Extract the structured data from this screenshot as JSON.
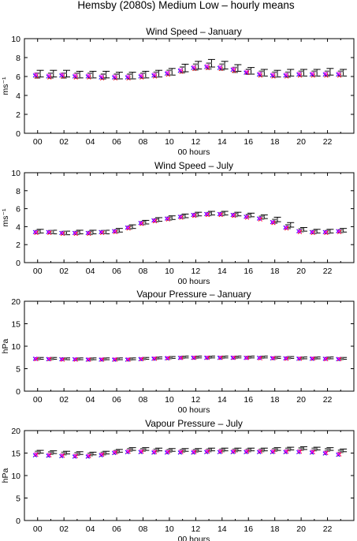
{
  "figure": {
    "title": "Hemsby (2080s) Medium Low – hourly means"
  },
  "series_colors": {
    "black_errorbar": "#000000",
    "grey_errorbar": "#777777",
    "red_marker": "#ff0000",
    "blue_marker": "#0000ff",
    "magenta_marker": "#ff00ff"
  },
  "chart_data": [
    {
      "type": "scatter",
      "title": "Wind Speed – January",
      "xlabel": "00 hours",
      "ylabel": "ms⁻¹",
      "xlim": [
        -1,
        24
      ],
      "ylim": [
        0,
        10
      ],
      "xticks": [
        "00",
        "02",
        "04",
        "06",
        "08",
        "10",
        "12",
        "14",
        "16",
        "18",
        "20",
        "22"
      ],
      "yticks": [
        "0",
        "2",
        "4",
        "6",
        "8",
        "10"
      ],
      "x": [
        0,
        1,
        2,
        3,
        4,
        5,
        6,
        7,
        8,
        9,
        10,
        11,
        12,
        13,
        14,
        15,
        16,
        17,
        18,
        19,
        20,
        21,
        22,
        23
      ],
      "series": [
        {
          "kind": "errorbar",
          "color": "#000000",
          "offset": 0.2,
          "values": [
            6.3,
            6.3,
            6.3,
            6.2,
            6.2,
            6.2,
            6.1,
            6.1,
            6.2,
            6.3,
            6.5,
            6.9,
            7.2,
            7.4,
            7.2,
            6.9,
            6.6,
            6.4,
            6.3,
            6.4,
            6.4,
            6.4,
            6.5,
            6.4
          ],
          "err": [
            0.35,
            0.35,
            0.35,
            0.35,
            0.35,
            0.35,
            0.35,
            0.35,
            0.35,
            0.35,
            0.35,
            0.4,
            0.4,
            0.4,
            0.4,
            0.35,
            0.35,
            0.35,
            0.35,
            0.35,
            0.35,
            0.35,
            0.35,
            0.35
          ]
        },
        {
          "kind": "errorbar",
          "color": "#777777",
          "offset": 0.0,
          "values": [
            6.1,
            6.1,
            6.1,
            6.1,
            6.1,
            6.0,
            6.0,
            6.0,
            6.1,
            6.2,
            6.4,
            6.7,
            7.0,
            7.1,
            7.0,
            6.7,
            6.5,
            6.3,
            6.2,
            6.2,
            6.3,
            6.3,
            6.3,
            6.3
          ],
          "err": [
            0.25,
            0.25,
            0.25,
            0.25,
            0.25,
            0.25,
            0.25,
            0.25,
            0.25,
            0.25,
            0.25,
            0.3,
            0.3,
            0.3,
            0.3,
            0.25,
            0.25,
            0.25,
            0.25,
            0.25,
            0.25,
            0.25,
            0.25,
            0.25
          ]
        },
        {
          "kind": "marker",
          "color": "#ff0000",
          "offset": -0.1,
          "values": [
            6.0,
            5.9,
            6.0,
            5.9,
            5.9,
            5.8,
            5.8,
            5.8,
            5.9,
            6.0,
            6.2,
            6.5,
            6.8,
            6.9,
            6.8,
            6.6,
            6.4,
            6.1,
            6.0,
            6.0,
            6.1,
            6.1,
            6.1,
            6.1
          ]
        },
        {
          "kind": "marker",
          "color": "#0000ff",
          "offset": -0.2,
          "values": [
            6.1,
            6.0,
            6.1,
            6.0,
            6.0,
            5.9,
            5.9,
            5.9,
            6.0,
            6.1,
            6.3,
            6.6,
            6.9,
            7.0,
            6.9,
            6.7,
            6.4,
            6.2,
            6.1,
            6.1,
            6.2,
            6.2,
            6.2,
            6.2
          ]
        },
        {
          "kind": "marker",
          "color": "#ff00ff",
          "offset": -0.15,
          "values": [
            6.2,
            6.1,
            6.2,
            6.1,
            6.1,
            6.0,
            6.0,
            6.0,
            6.1,
            6.2,
            6.4,
            6.7,
            7.0,
            7.1,
            7.0,
            6.8,
            6.5,
            6.3,
            6.2,
            6.2,
            6.3,
            6.3,
            6.3,
            6.3
          ]
        }
      ]
    },
    {
      "type": "scatter",
      "title": "Wind Speed – July",
      "xlabel": "00 hours",
      "ylabel": "ms⁻¹",
      "xlim": [
        -1,
        24
      ],
      "ylim": [
        0,
        10
      ],
      "xticks": [
        "00",
        "02",
        "04",
        "06",
        "08",
        "10",
        "12",
        "14",
        "16",
        "18",
        "20",
        "22"
      ],
      "yticks": [
        "0",
        "2",
        "4",
        "6",
        "8",
        "10"
      ],
      "x": [
        0,
        1,
        2,
        3,
        4,
        5,
        6,
        7,
        8,
        9,
        10,
        11,
        12,
        13,
        14,
        15,
        16,
        17,
        18,
        19,
        20,
        21,
        22,
        23
      ],
      "series": [
        {
          "kind": "errorbar",
          "color": "#000000",
          "offset": 0.2,
          "values": [
            3.5,
            3.4,
            3.3,
            3.4,
            3.4,
            3.4,
            3.6,
            4.0,
            4.5,
            4.8,
            5.0,
            5.2,
            5.4,
            5.5,
            5.5,
            5.4,
            5.3,
            5.1,
            4.8,
            4.2,
            3.7,
            3.5,
            3.5,
            3.6
          ],
          "err": [
            0.2,
            0.2,
            0.2,
            0.2,
            0.2,
            0.2,
            0.2,
            0.2,
            0.2,
            0.2,
            0.2,
            0.2,
            0.2,
            0.2,
            0.2,
            0.2,
            0.2,
            0.2,
            0.25,
            0.25,
            0.2,
            0.2,
            0.2,
            0.2
          ]
        },
        {
          "kind": "errorbar",
          "color": "#777777",
          "offset": 0.0,
          "values": [
            3.4,
            3.4,
            3.3,
            3.3,
            3.3,
            3.4,
            3.5,
            3.9,
            4.4,
            4.7,
            4.9,
            5.1,
            5.3,
            5.4,
            5.4,
            5.3,
            5.2,
            5.0,
            4.6,
            4.0,
            3.6,
            3.4,
            3.4,
            3.5
          ],
          "err": [
            0.15,
            0.15,
            0.15,
            0.15,
            0.15,
            0.15,
            0.15,
            0.15,
            0.15,
            0.15,
            0.15,
            0.15,
            0.15,
            0.15,
            0.15,
            0.15,
            0.15,
            0.15,
            0.2,
            0.2,
            0.15,
            0.15,
            0.15,
            0.15
          ]
        },
        {
          "kind": "marker",
          "color": "#ff0000",
          "offset": -0.1,
          "values": [
            3.3,
            3.3,
            3.2,
            3.2,
            3.2,
            3.3,
            3.4,
            3.8,
            4.3,
            4.6,
            4.8,
            5.0,
            5.2,
            5.3,
            5.3,
            5.2,
            5.0,
            4.8,
            4.4,
            3.8,
            3.4,
            3.3,
            3.3,
            3.4
          ]
        },
        {
          "kind": "marker",
          "color": "#0000ff",
          "offset": -0.2,
          "values": [
            3.4,
            3.4,
            3.3,
            3.3,
            3.3,
            3.4,
            3.5,
            3.9,
            4.4,
            4.7,
            4.9,
            5.1,
            5.3,
            5.4,
            5.4,
            5.3,
            5.1,
            4.9,
            4.5,
            3.9,
            3.5,
            3.4,
            3.4,
            3.5
          ]
        },
        {
          "kind": "marker",
          "color": "#ff00ff",
          "offset": -0.15,
          "values": [
            3.4,
            3.4,
            3.3,
            3.3,
            3.3,
            3.4,
            3.5,
            3.9,
            4.4,
            4.7,
            4.9,
            5.1,
            5.3,
            5.4,
            5.4,
            5.3,
            5.1,
            4.9,
            4.5,
            3.9,
            3.5,
            3.4,
            3.4,
            3.5
          ]
        }
      ]
    },
    {
      "type": "scatter",
      "title": "Vapour Pressure – January",
      "xlabel": "00 hours",
      "ylabel": "hPa",
      "xlim": [
        -1,
        24
      ],
      "ylim": [
        0,
        20
      ],
      "xticks": [
        "00",
        "02",
        "04",
        "06",
        "08",
        "10",
        "12",
        "14",
        "16",
        "18",
        "20",
        "22"
      ],
      "yticks": [
        "0",
        "5",
        "10",
        "15",
        "20"
      ],
      "x": [
        0,
        1,
        2,
        3,
        4,
        5,
        6,
        7,
        8,
        9,
        10,
        11,
        12,
        13,
        14,
        15,
        16,
        17,
        18,
        19,
        20,
        21,
        22,
        23
      ],
      "series": [
        {
          "kind": "errorbar",
          "color": "#000000",
          "offset": 0.2,
          "values": [
            7.3,
            7.3,
            7.2,
            7.2,
            7.2,
            7.2,
            7.2,
            7.2,
            7.3,
            7.4,
            7.5,
            7.6,
            7.6,
            7.6,
            7.6,
            7.6,
            7.6,
            7.6,
            7.5,
            7.5,
            7.4,
            7.4,
            7.4,
            7.3
          ],
          "err": [
            0.2,
            0.2,
            0.2,
            0.2,
            0.2,
            0.2,
            0.2,
            0.2,
            0.2,
            0.2,
            0.2,
            0.2,
            0.2,
            0.2,
            0.2,
            0.2,
            0.2,
            0.2,
            0.2,
            0.2,
            0.2,
            0.2,
            0.2,
            0.2
          ]
        },
        {
          "kind": "errorbar",
          "color": "#777777",
          "offset": 0.0,
          "values": [
            7.2,
            7.2,
            7.2,
            7.1,
            7.1,
            7.1,
            7.1,
            7.1,
            7.2,
            7.3,
            7.4,
            7.5,
            7.5,
            7.5,
            7.5,
            7.5,
            7.5,
            7.5,
            7.4,
            7.4,
            7.3,
            7.3,
            7.3,
            7.2
          ],
          "err": [
            0.15,
            0.15,
            0.15,
            0.15,
            0.15,
            0.15,
            0.15,
            0.15,
            0.15,
            0.15,
            0.15,
            0.15,
            0.15,
            0.15,
            0.15,
            0.15,
            0.15,
            0.15,
            0.15,
            0.15,
            0.15,
            0.15,
            0.15,
            0.15
          ]
        },
        {
          "kind": "marker",
          "color": "#ff0000",
          "offset": -0.1,
          "values": [
            7.1,
            7.1,
            7.0,
            7.0,
            7.0,
            7.0,
            7.0,
            7.0,
            7.1,
            7.2,
            7.3,
            7.4,
            7.4,
            7.4,
            7.4,
            7.4,
            7.4,
            7.3,
            7.3,
            7.2,
            7.2,
            7.2,
            7.1,
            7.1
          ]
        },
        {
          "kind": "marker",
          "color": "#0000ff",
          "offset": -0.2,
          "values": [
            7.2,
            7.1,
            7.1,
            7.1,
            7.0,
            7.0,
            7.0,
            7.0,
            7.1,
            7.2,
            7.3,
            7.4,
            7.4,
            7.4,
            7.4,
            7.4,
            7.4,
            7.4,
            7.3,
            7.3,
            7.2,
            7.2,
            7.2,
            7.1
          ]
        },
        {
          "kind": "marker",
          "color": "#ff00ff",
          "offset": -0.15,
          "values": [
            7.2,
            7.2,
            7.1,
            7.1,
            7.1,
            7.1,
            7.1,
            7.1,
            7.2,
            7.3,
            7.4,
            7.4,
            7.5,
            7.5,
            7.5,
            7.5,
            7.4,
            7.4,
            7.4,
            7.3,
            7.3,
            7.3,
            7.2,
            7.2
          ]
        }
      ]
    },
    {
      "type": "scatter",
      "title": "Vapour Pressure – July",
      "xlabel": "00 hours",
      "ylabel": "hPa",
      "xlim": [
        -1,
        24
      ],
      "ylim": [
        0,
        20
      ],
      "xticks": [
        "00",
        "02",
        "04",
        "06",
        "08",
        "10",
        "12",
        "14",
        "16",
        "18",
        "20",
        "22"
      ],
      "yticks": [
        "0",
        "5",
        "10",
        "15",
        "20"
      ],
      "x": [
        0,
        1,
        2,
        3,
        4,
        5,
        6,
        7,
        8,
        9,
        10,
        11,
        12,
        13,
        14,
        15,
        16,
        17,
        18,
        19,
        20,
        21,
        22,
        23
      ],
      "series": [
        {
          "kind": "errorbar",
          "color": "#000000",
          "offset": 0.2,
          "values": [
            15.3,
            15.2,
            15.1,
            15.0,
            14.9,
            15.1,
            15.5,
            15.9,
            15.9,
            15.8,
            15.7,
            15.7,
            15.7,
            15.8,
            15.8,
            15.8,
            15.8,
            15.8,
            15.9,
            16.0,
            16.1,
            16.0,
            15.9,
            15.6
          ],
          "err": [
            0.3,
            0.3,
            0.3,
            0.3,
            0.3,
            0.3,
            0.3,
            0.3,
            0.3,
            0.3,
            0.3,
            0.3,
            0.3,
            0.3,
            0.3,
            0.3,
            0.3,
            0.3,
            0.3,
            0.3,
            0.3,
            0.3,
            0.3,
            0.3
          ]
        },
        {
          "kind": "errorbar",
          "color": "#777777",
          "offset": 0.0,
          "values": [
            15.1,
            15.0,
            14.9,
            14.8,
            14.7,
            14.9,
            15.3,
            15.7,
            15.7,
            15.6,
            15.5,
            15.5,
            15.5,
            15.6,
            15.6,
            15.6,
            15.6,
            15.6,
            15.7,
            15.8,
            15.9,
            15.8,
            15.7,
            15.4
          ],
          "err": [
            0.25,
            0.25,
            0.25,
            0.25,
            0.25,
            0.25,
            0.25,
            0.25,
            0.25,
            0.25,
            0.25,
            0.25,
            0.25,
            0.25,
            0.25,
            0.25,
            0.25,
            0.25,
            0.25,
            0.25,
            0.25,
            0.25,
            0.25,
            0.25
          ]
        },
        {
          "kind": "marker",
          "color": "#ff0000",
          "offset": -0.1,
          "values": [
            14.6,
            14.5,
            14.4,
            14.3,
            14.3,
            14.6,
            15.1,
            15.3,
            15.3,
            15.2,
            15.2,
            15.2,
            15.2,
            15.3,
            15.3,
            15.3,
            15.3,
            15.3,
            15.3,
            15.3,
            15.3,
            15.2,
            15.0,
            14.7
          ]
        },
        {
          "kind": "marker",
          "color": "#0000ff",
          "offset": -0.2,
          "values": [
            14.5,
            14.4,
            14.3,
            14.2,
            14.2,
            14.5,
            15.0,
            15.2,
            15.2,
            15.1,
            15.1,
            15.1,
            15.1,
            15.2,
            15.2,
            15.2,
            15.2,
            15.2,
            15.2,
            15.2,
            15.2,
            15.1,
            14.9,
            14.6
          ]
        },
        {
          "kind": "marker",
          "color": "#ff00ff",
          "offset": -0.15,
          "values": [
            14.7,
            14.6,
            14.5,
            14.4,
            14.4,
            14.7,
            15.2,
            15.4,
            15.4,
            15.3,
            15.3,
            15.3,
            15.3,
            15.4,
            15.4,
            15.4,
            15.4,
            15.4,
            15.4,
            15.4,
            15.4,
            15.3,
            15.1,
            14.8
          ]
        }
      ]
    }
  ]
}
